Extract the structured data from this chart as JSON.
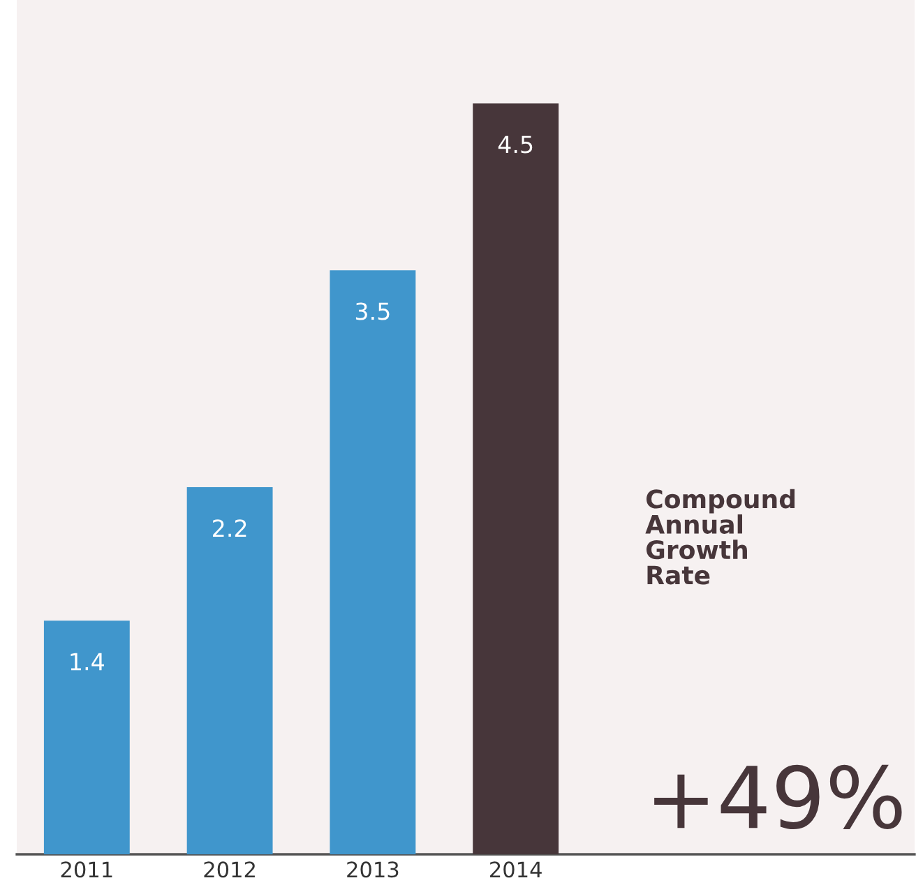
{
  "chart_data": {
    "type": "bar",
    "categories": [
      "2011",
      "2012",
      "2013",
      "2014"
    ],
    "values": [
      1.4,
      2.2,
      3.5,
      4.5
    ],
    "colors": [
      "#4096cc",
      "#4096cc",
      "#4096cc",
      "#47363a"
    ],
    "ylim": [
      0,
      5.12
    ],
    "data_labels": true,
    "grid": false,
    "legend": false,
    "tick_labels": "x",
    "annotations": [
      "Compound\nAnnual\nGrowth\nRate",
      "+49%"
    ]
  }
}
